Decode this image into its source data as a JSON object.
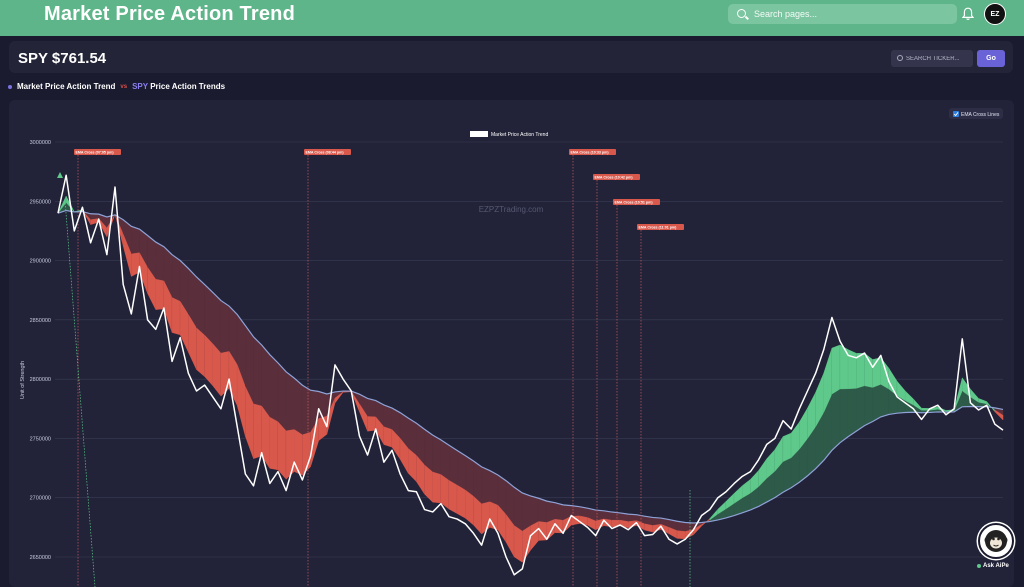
{
  "header": {
    "title": "Market Price Action Trend",
    "search_placeholder": "Search pages...",
    "avatar_text": "EZ"
  },
  "ticker": {
    "title": "SPY $761.54",
    "search_placeholder": "SEARCH TICKER...",
    "go_label": "Go"
  },
  "subtitle": {
    "left": "Market Price Action Trend",
    "vs": "vs",
    "ticker": "SPY",
    "right": "Price Action Trends"
  },
  "chart_controls": {
    "ema_toggle_label": "EMA Cross Lines",
    "ema_checked": true
  },
  "ask_aipe": "Ask AiPe",
  "colors": {
    "topbar": "#5fb58a",
    "accent": "#6a63d8",
    "bear": "#d9584c",
    "bull": "#5ec98a",
    "ema_line": "#8fa2d8"
  },
  "chart_data": {
    "type": "line",
    "legend": "Market Price Action Trend",
    "watermark": "EZPZTrading.com",
    "ylabel": "Unit of Strength",
    "ylim": [
      2630000,
      3000000
    ],
    "yticks": [
      3000000,
      2950000,
      2900000,
      2850000,
      2800000,
      2750000,
      2700000,
      2650000
    ],
    "ema_cross_labels": [
      "EMA Cross (07:05 pm)",
      "EMA Cross (08:44 pm)",
      "EMA Cross (10:33 pm)",
      "EMA Cross (10:42 pm)",
      "EMA Cross (10:51 pm)",
      "EMA Cross (11:01 pm)"
    ],
    "price": [
      2940000,
      2972000,
      2925000,
      2945000,
      2915000,
      2935000,
      2905000,
      2962000,
      2880000,
      2855000,
      2895000,
      2850000,
      2842000,
      2860000,
      2815000,
      2835000,
      2805000,
      2790000,
      2795000,
      2785000,
      2775000,
      2800000,
      2760000,
      2720000,
      2710000,
      2738000,
      2712000,
      2722000,
      2706000,
      2730000,
      2715000,
      2735000,
      2775000,
      2760000,
      2812000,
      2800000,
      2790000,
      2752000,
      2736000,
      2758000,
      2730000,
      2740000,
      2720000,
      2706000,
      2705000,
      2690000,
      2688000,
      2695000,
      2684000,
      2682000,
      2678000,
      2670000,
      2660000,
      2682000,
      2670000,
      2650000,
      2635000,
      2640000,
      2668000,
      2674000,
      2665000,
      2678000,
      2670000,
      2685000,
      2680000,
      2675000,
      2668000,
      2681000,
      2674000,
      2677000,
      2673000,
      2679000,
      2668000,
      2669000,
      2676000,
      2665000,
      2661000,
      2665000,
      2673000,
      2685000,
      2690000,
      2700000,
      2705000,
      2712000,
      2718000,
      2722000,
      2732000,
      2745000,
      2750000,
      2765000,
      2758000,
      2775000,
      2790000,
      2805000,
      2825000,
      2852000,
      2832000,
      2820000,
      2818000,
      2822000,
      2810000,
      2820000,
      2798000,
      2785000,
      2780000,
      2775000,
      2766000,
      2775000,
      2778000,
      2770000,
      2775000,
      2834000,
      2780000,
      2774000,
      2778000,
      2762000,
      2757000
    ]
  }
}
